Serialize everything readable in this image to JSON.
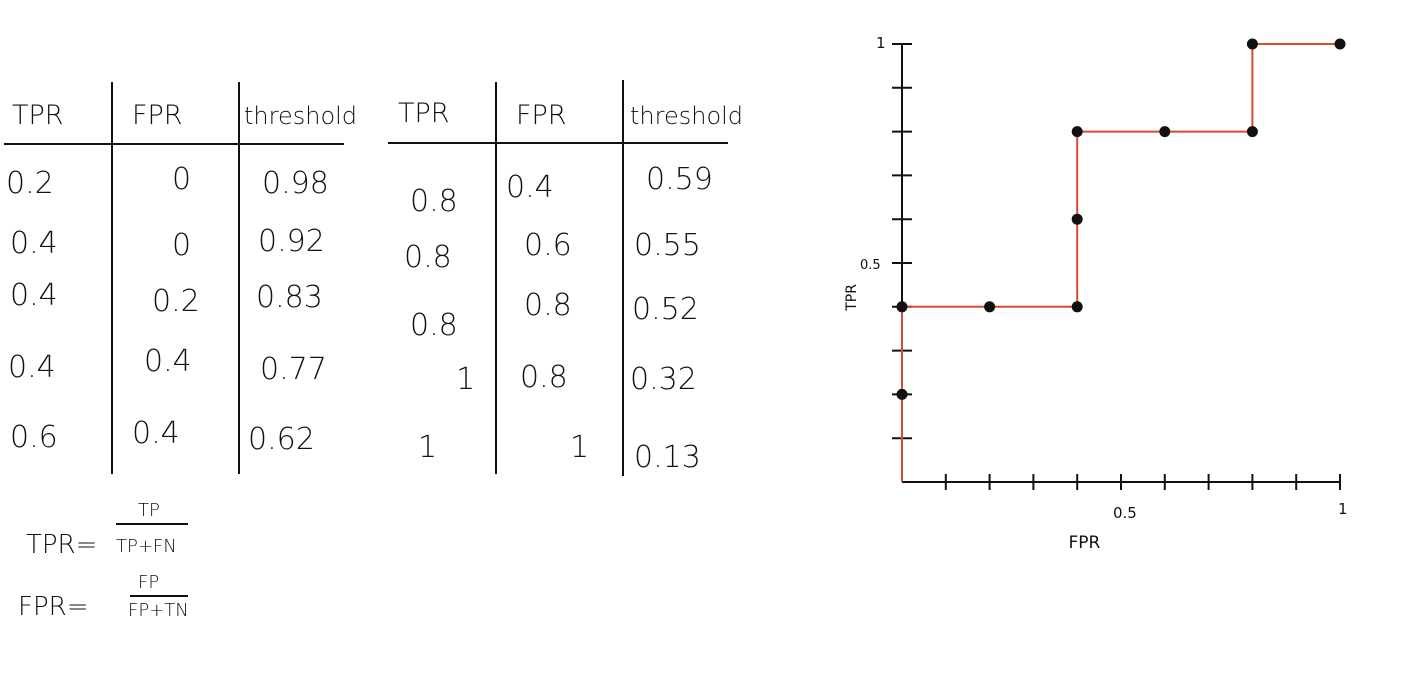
{
  "table1": {
    "headers": [
      "TPR",
      "FPR",
      "threshold"
    ],
    "rows": [
      [
        "0.2",
        "0",
        "0.98"
      ],
      [
        "0.4",
        "0",
        "0.92"
      ],
      [
        "0.4",
        "0.2",
        "0.83"
      ],
      [
        "0.4",
        "0.4",
        "0.77"
      ],
      [
        "0.6",
        "0.4",
        "0.62"
      ]
    ]
  },
  "table2": {
    "headers": [
      "TPR",
      "FPR",
      "threshold"
    ],
    "rows": [
      [
        "0.8",
        "0.4",
        "0.59"
      ],
      [
        "0.8",
        "0.6",
        "0.55"
      ],
      [
        "0.8",
        "0.8",
        "0.52"
      ],
      [
        "1",
        "0.8",
        "0.32"
      ],
      [
        "1",
        "1",
        "0.13"
      ]
    ]
  },
  "formulas": {
    "tpr": {
      "lhs": "TPR=",
      "num": "TP",
      "den": "TP+FN"
    },
    "fpr": {
      "lhs": "FPR=",
      "num": "FP",
      "den": "FP+TN"
    }
  },
  "chart_data": {
    "type": "line",
    "step": true,
    "xlabel": "FPR",
    "ylabel": "TPR",
    "xlim": [
      0,
      1
    ],
    "ylim": [
      0,
      1
    ],
    "x_tick_labels": [
      "0.5",
      "1"
    ],
    "y_tick_labels": [
      "0.5",
      "1"
    ],
    "x_tick_count": 10,
    "y_tick_count": 10,
    "line_color": "#d64a32",
    "step_path": [
      [
        0,
        0
      ],
      [
        0,
        0.4
      ],
      [
        0.4,
        0.4
      ],
      [
        0.4,
        0.8
      ],
      [
        0.8,
        0.8
      ],
      [
        0.8,
        1
      ],
      [
        1,
        1
      ]
    ],
    "points": [
      [
        0,
        0.2
      ],
      [
        0,
        0.4
      ],
      [
        0.2,
        0.4
      ],
      [
        0.4,
        0.4
      ],
      [
        0.4,
        0.6
      ],
      [
        0.4,
        0.8
      ],
      [
        0.6,
        0.8
      ],
      [
        0.8,
        0.8
      ],
      [
        0.8,
        1
      ],
      [
        1,
        1
      ]
    ]
  }
}
